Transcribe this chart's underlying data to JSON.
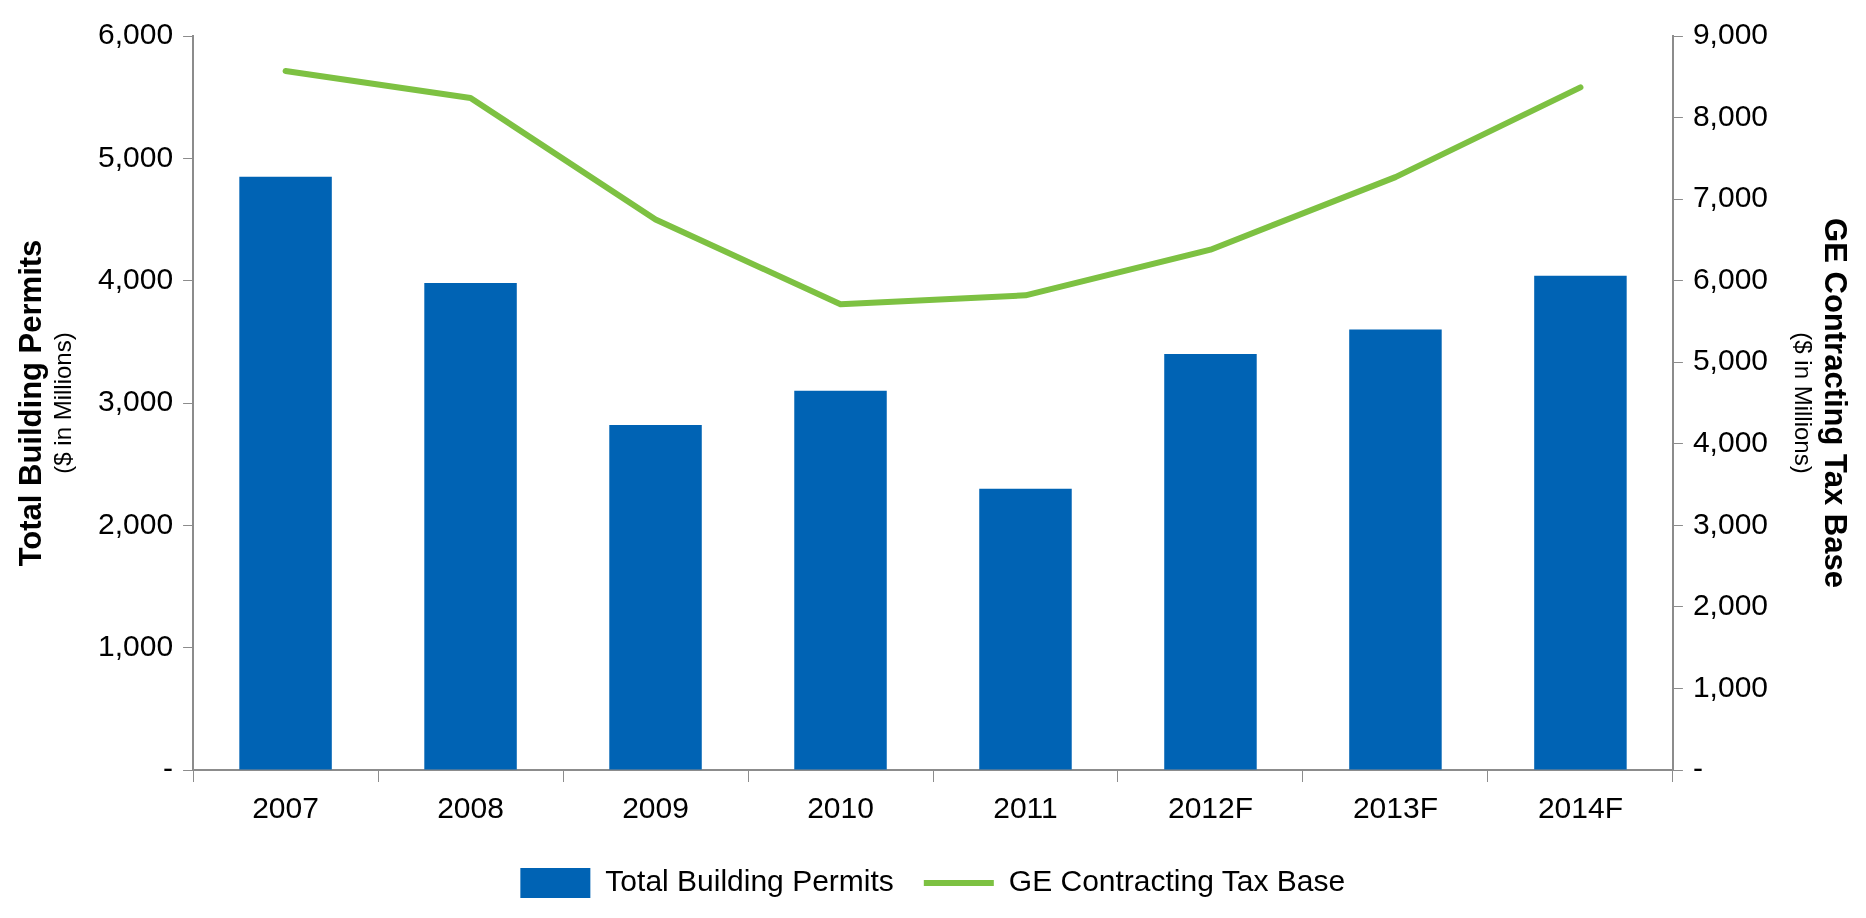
{
  "chart_data": {
    "type": "bar",
    "categories": [
      "2007",
      "2008",
      "2009",
      "2010",
      "2011",
      "2012F",
      "2013F",
      "2014F"
    ],
    "series": [
      {
        "name": "Total Building Permits",
        "color": "#0063b4",
        "values": [
          4850,
          3980,
          2820,
          3100,
          2300,
          3400,
          3600,
          4040
        ]
      },
      {
        "name": "GE Contracting Tax Base",
        "type": "line",
        "axis": "y2",
        "color": "#7dc142",
        "marker": "none",
        "values": [
          8570,
          8240,
          6750,
          5710,
          5820,
          6380,
          7270,
          8370
        ]
      }
    ],
    "ylabel": "Total Building Permits ($ in Millions)",
    "y2label": "GE Contracting Tax Base ($ in Millions)",
    "ylim": [
      0,
      6000
    ],
    "yticks": [
      {
        "value": 0,
        "label": "-"
      },
      {
        "value": 1000,
        "label": "1,000"
      },
      {
        "value": 2000,
        "label": "2,000"
      },
      {
        "value": 3000,
        "label": "3,000"
      },
      {
        "value": 4000,
        "label": "4,000"
      },
      {
        "value": 5000,
        "label": "5,000"
      },
      {
        "value": 6000,
        "label": "6,000"
      }
    ],
    "y2lim": [
      0,
      9000
    ],
    "y2ticks": [
      {
        "value": 0,
        "label": "-"
      },
      {
        "value": 1000,
        "label": "1,000"
      },
      {
        "value": 2000,
        "label": "2,000"
      },
      {
        "value": 3000,
        "label": "3,000"
      },
      {
        "value": 4000,
        "label": "4,000"
      },
      {
        "value": 5000,
        "label": "5,000"
      },
      {
        "value": 6000,
        "label": "6,000"
      },
      {
        "value": 7000,
        "label": "7,000"
      },
      {
        "value": 8000,
        "label": "8,000"
      },
      {
        "value": 9000,
        "label": "9,000"
      }
    ],
    "legend": "bottom"
  }
}
